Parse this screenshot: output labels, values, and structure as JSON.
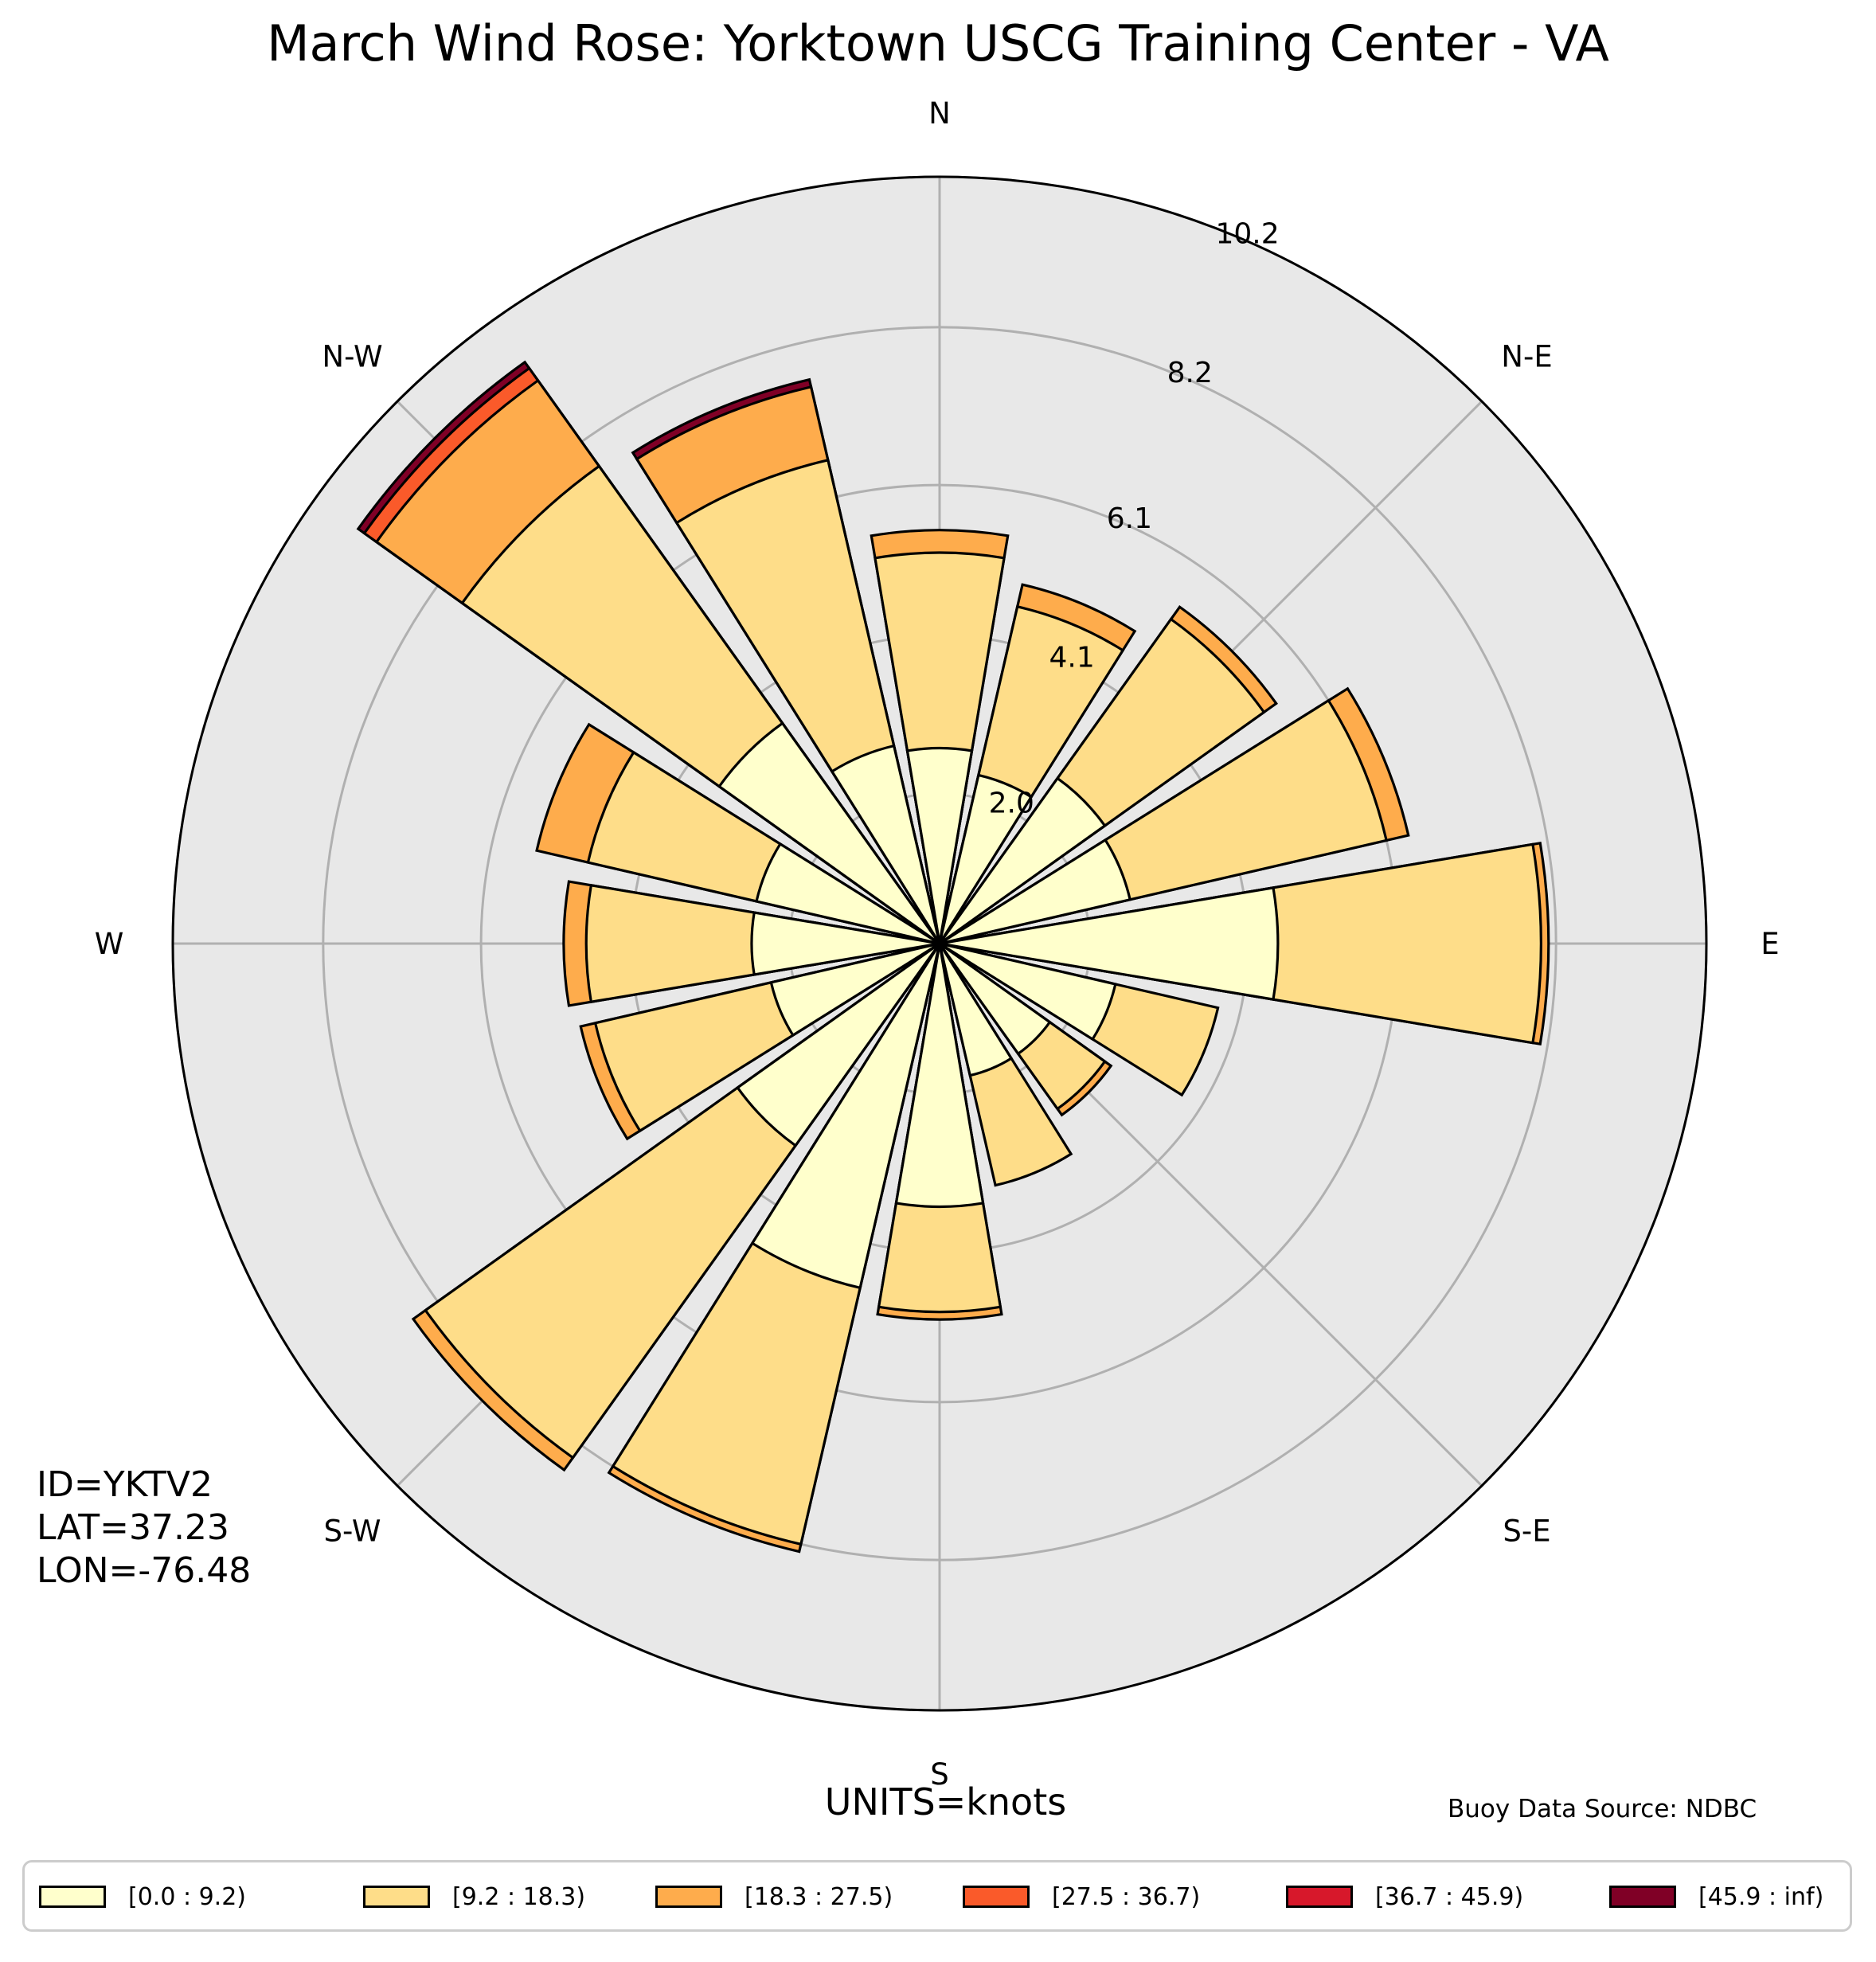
{
  "title": "March Wind Rose: Yorktown USCG Training Center - VA",
  "station": {
    "id_text": "ID=YKTV2",
    "lat_text": "LAT=37.23",
    "lon_text": "LON=-76.48"
  },
  "units_text": "UNITS=knots",
  "source_text": "Buoy Data Source: NDBC",
  "chart_data": {
    "type": "wind_rose",
    "title": "March Wind Rose: Yorktown USCG Training Center - VA",
    "direction_labels": [
      "N",
      "N-E",
      "E",
      "S-E",
      "S",
      "S-W",
      "W",
      "N-W"
    ],
    "radial_ticks": [
      "2.0",
      "4.1",
      "6.1",
      "8.2",
      "10.2"
    ],
    "radial_tick_values": [
      2.0,
      4.1,
      6.1,
      8.2,
      10.2
    ],
    "rmax": 10.2,
    "units": "knots",
    "sector_directions_deg": [
      0,
      22.5,
      45,
      67.5,
      90,
      112.5,
      135,
      157.5,
      180,
      202.5,
      225,
      247.5,
      270,
      292.5,
      315,
      337.5
    ],
    "speed_bins": [
      {
        "name": "[0.0 : 9.2)",
        "color": "#ffffcc"
      },
      {
        "name": "[9.2 : 18.3)",
        "color": "#fedd89"
      },
      {
        "name": "[18.3 : 27.5)",
        "color": "#feac4c"
      },
      {
        "name": "[27.5 : 36.7)",
        "color": "#fa5a2a"
      },
      {
        "name": "[36.7 : 45.9)",
        "color": "#d7182b"
      },
      {
        "name": "[45.9 : inf)",
        "color": "#800026"
      }
    ],
    "cumulative_frequencies_percent": [
      [
        2.6,
        5.2,
        5.5,
        5.5,
        5.5,
        5.5
      ],
      [
        2.3,
        4.6,
        4.9,
        4.9,
        4.9,
        4.9
      ],
      [
        2.7,
        5.3,
        5.5,
        5.5,
        5.5,
        5.5
      ],
      [
        2.6,
        6.1,
        6.4,
        6.4,
        6.4,
        6.4
      ],
      [
        4.5,
        8.0,
        8.1,
        8.1,
        8.1,
        8.1
      ],
      [
        2.4,
        3.8,
        3.8,
        3.8,
        3.8,
        3.8
      ],
      [
        1.8,
        2.7,
        2.8,
        2.8,
        2.8,
        2.8
      ],
      [
        1.8,
        3.3,
        3.3,
        3.3,
        3.3,
        3.3
      ],
      [
        3.5,
        4.9,
        5.0,
        5.0,
        5.0,
        5.0
      ],
      [
        4.7,
        8.2,
        8.3,
        8.3,
        8.3,
        8.3
      ],
      [
        3.3,
        8.4,
        8.6,
        8.6,
        8.6,
        8.6
      ],
      [
        2.3,
        4.7,
        4.9,
        4.9,
        4.9,
        4.9
      ],
      [
        2.5,
        4.7,
        5.0,
        5.0,
        5.0,
        5.0
      ],
      [
        2.5,
        4.8,
        5.5,
        5.5,
        5.5,
        5.5
      ],
      [
        3.6,
        7.8,
        9.2,
        9.4,
        9.4,
        9.5
      ],
      [
        2.7,
        6.6,
        7.6,
        7.6,
        7.6,
        7.7
      ]
    ],
    "legend_placement": "bottom",
    "grid": true
  },
  "colors": {
    "background": "#e8e8e8",
    "grid": "#b0b0b0",
    "edge": "#000000"
  }
}
